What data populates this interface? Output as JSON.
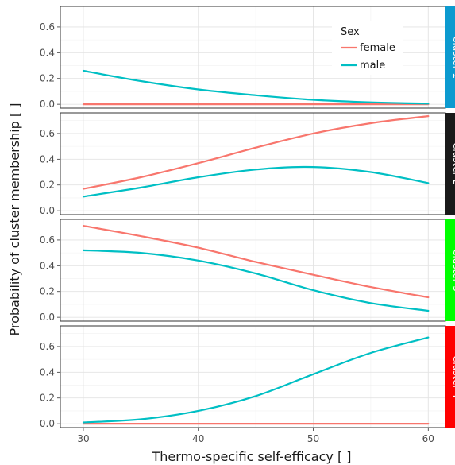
{
  "chart_data": {
    "type": "line",
    "xlabel": "Thermo-specific self-efficacy [ ]",
    "ylabel": "Probability of cluster membership [ ]",
    "xlim": [
      28,
      61.5
    ],
    "ylim": [
      -0.03,
      0.76
    ],
    "x_ticks": [
      30,
      40,
      50,
      60
    ],
    "y_ticks": [
      0.0,
      0.2,
      0.4,
      0.6
    ],
    "y_tick_labels": [
      "0.0",
      "0.2",
      "0.4",
      "0.6"
    ],
    "grid": true,
    "legend": {
      "title": "Sex",
      "position": "top-right",
      "entries": [
        {
          "name": "female",
          "color": "#F8766D"
        },
        {
          "name": "male",
          "color": "#00BFC4"
        }
      ]
    },
    "x": [
      30,
      35,
      40,
      45,
      50,
      55,
      60
    ],
    "panels": [
      {
        "strip_label": "Cluster 1",
        "strip_color": "#0C9ACF",
        "strip_text_color": "#ffffff",
        "series": [
          {
            "name": "female",
            "color": "#F8766D",
            "values": [
              0.0,
              0.0,
              0.0,
              0.0,
              0.0,
              0.0,
              0.0
            ]
          },
          {
            "name": "male",
            "color": "#00BFC4",
            "values": [
              0.26,
              0.18,
              0.115,
              0.07,
              0.035,
              0.015,
              0.005
            ]
          }
        ]
      },
      {
        "strip_label": "Cluster 2",
        "strip_color": "#1A1A1A",
        "strip_text_color": "#ffffff",
        "series": [
          {
            "name": "female",
            "color": "#F8766D",
            "values": [
              0.17,
              0.26,
              0.37,
              0.49,
              0.6,
              0.68,
              0.735
            ]
          },
          {
            "name": "male",
            "color": "#00BFC4",
            "values": [
              0.11,
              0.18,
              0.26,
              0.32,
              0.34,
              0.3,
              0.215
            ]
          }
        ]
      },
      {
        "strip_label": "Cluster 3",
        "strip_color": "#00FF00",
        "strip_text_color": "#ffffff",
        "series": [
          {
            "name": "female",
            "color": "#F8766D",
            "values": [
              0.71,
              0.63,
              0.54,
              0.43,
              0.33,
              0.235,
              0.155
            ]
          },
          {
            "name": "male",
            "color": "#00BFC4",
            "values": [
              0.52,
              0.5,
              0.44,
              0.34,
              0.21,
              0.11,
              0.05
            ]
          }
        ]
      },
      {
        "strip_label": "Cluster 4",
        "strip_color": "#FF0000",
        "strip_text_color": "#ffffff",
        "series": [
          {
            "name": "female",
            "color": "#F8766D",
            "values": [
              0.0,
              0.0,
              0.0,
              0.0,
              0.0,
              0.0,
              0.0
            ]
          },
          {
            "name": "male",
            "color": "#00BFC4",
            "values": [
              0.01,
              0.035,
              0.1,
              0.215,
              0.385,
              0.55,
              0.67
            ]
          }
        ]
      }
    ]
  }
}
